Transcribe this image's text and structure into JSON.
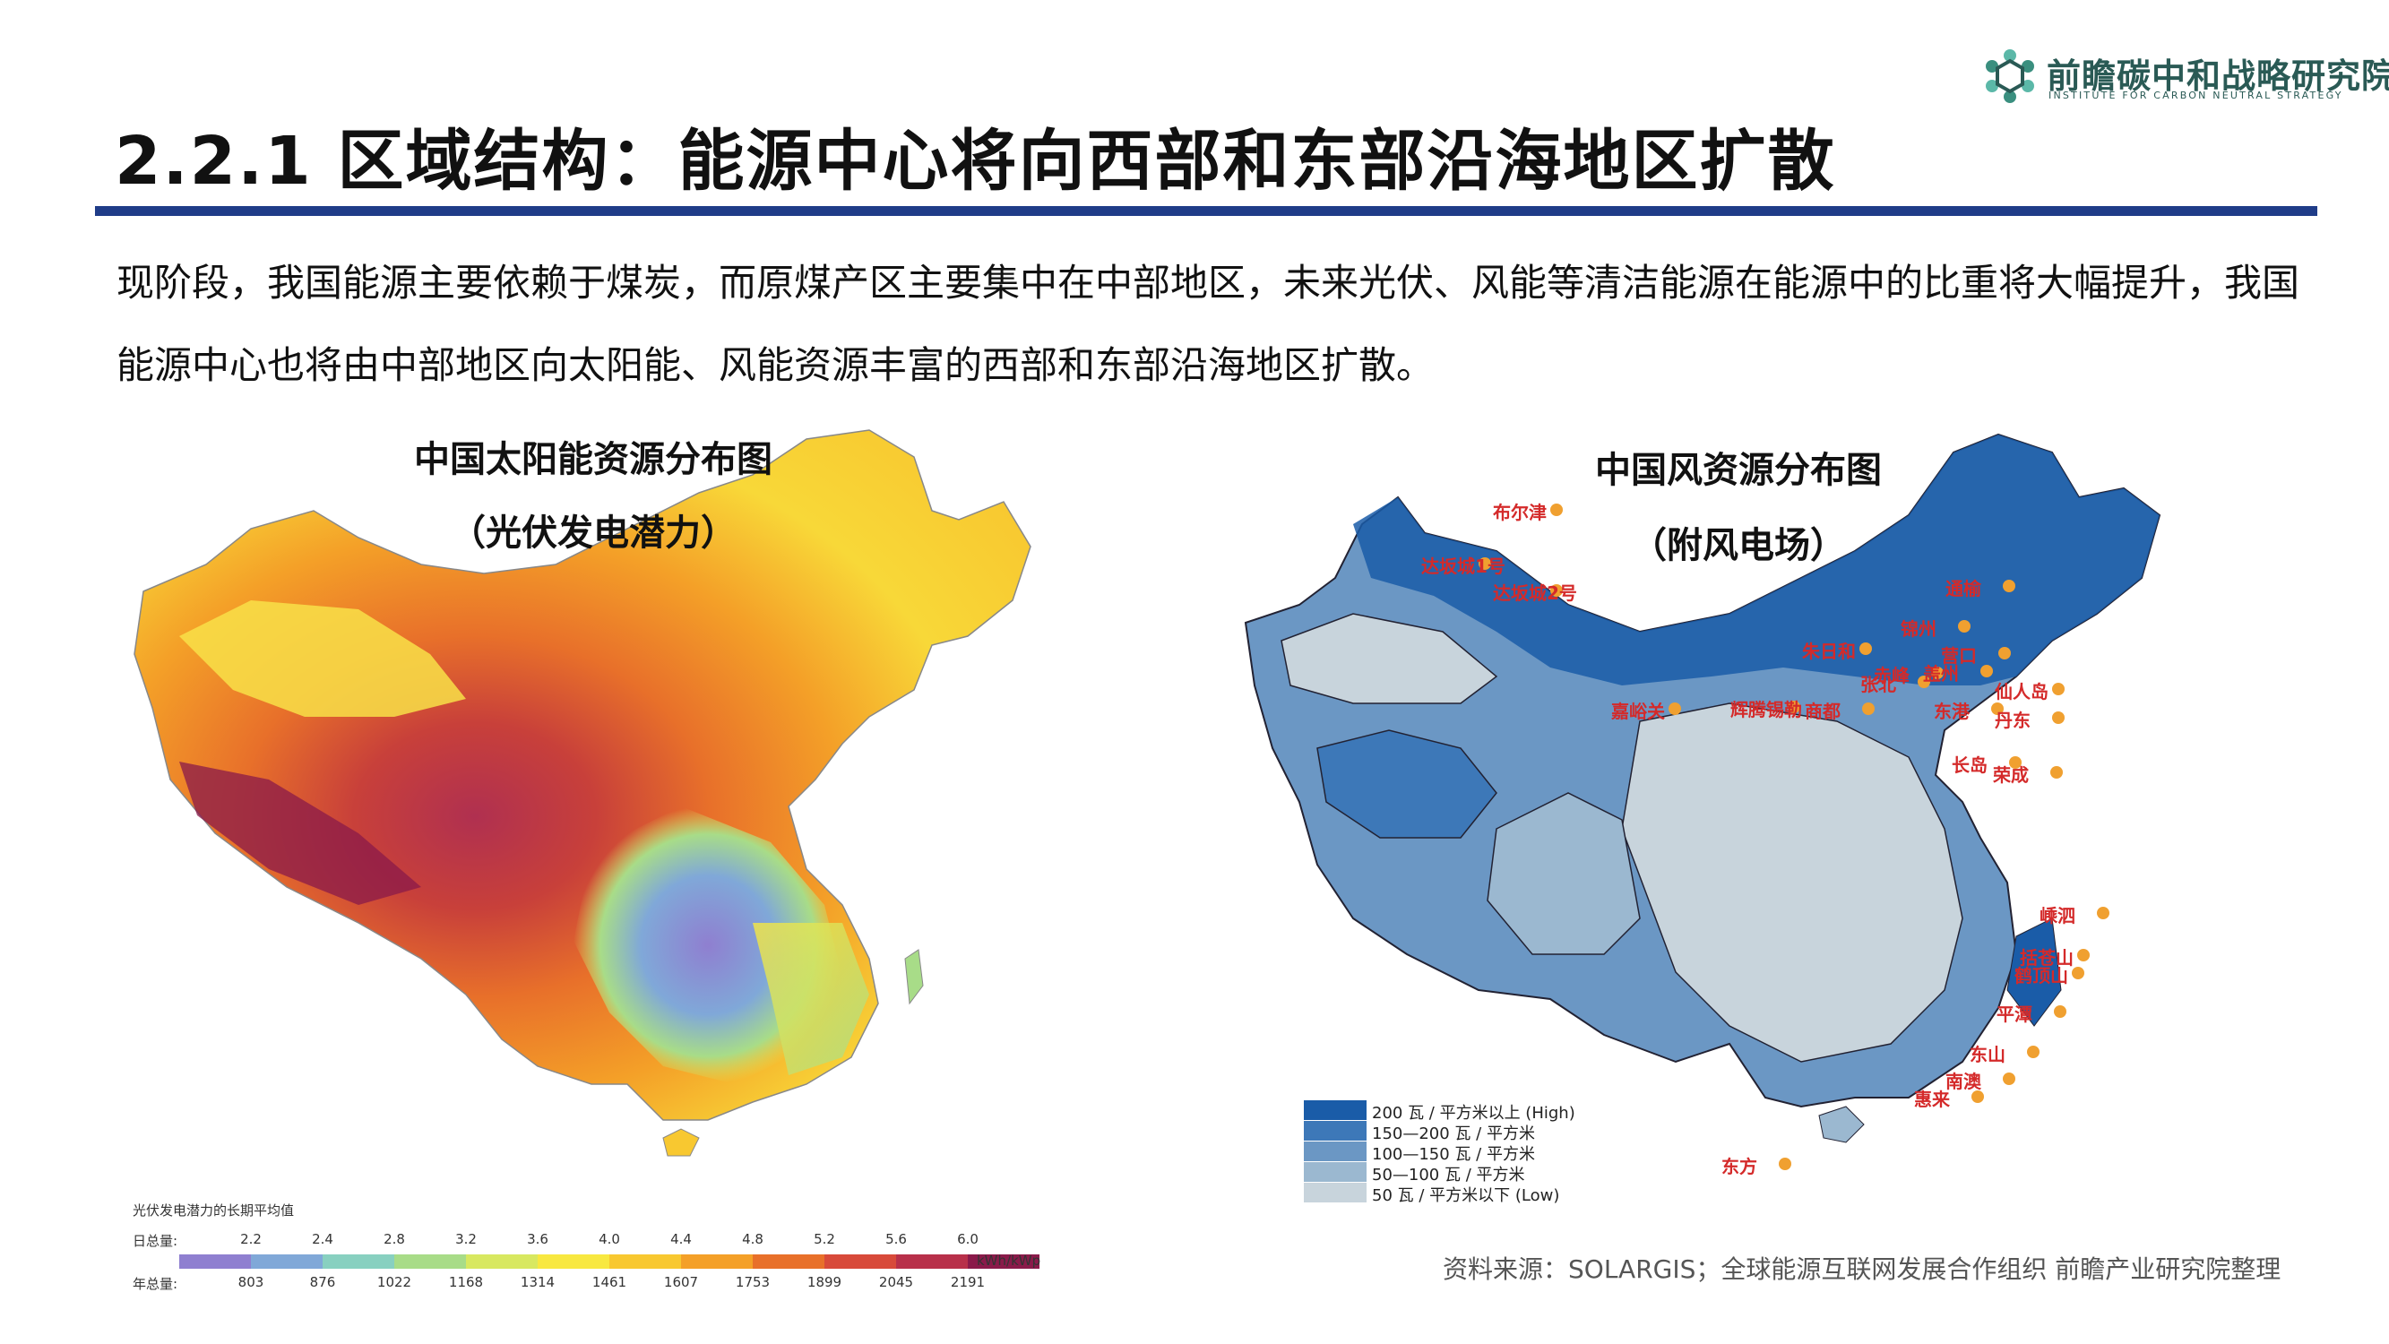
{
  "logo": {
    "name_cn": "前瞻碳中和战略研究院",
    "name_en": "INSTITUTE FOR CARBON NEUTRAL STRATEGY",
    "colors": [
      "#5bb8a8",
      "#3a8f7f",
      "#2a5a55"
    ]
  },
  "title": "2.2.1 区域结构：能源中心将向西部和东部沿海地区扩散",
  "paragraph": "现阶段，我国能源主要依赖于煤炭，而原煤产区主要集中在中部地区，未来光伏、风能等清洁能源在能源中的比重将大幅提升，我国能源中心也将由中部地区向太阳能、风能资源丰富的西部和东部沿海地区扩散。",
  "solar_map": {
    "title": "中国太阳能资源分布图",
    "subtitle": "（光伏发电潜力）",
    "legend": {
      "title": "光伏发电潜力的长期平均值",
      "daily_label": "日总量:",
      "yearly_label": "年总量:",
      "daily_ticks": [
        "2.2",
        "2.4",
        "2.8",
        "3.2",
        "3.6",
        "4.0",
        "4.4",
        "4.8",
        "5.2",
        "5.6",
        "6.0"
      ],
      "yearly_ticks": [
        "803",
        "876",
        "1022",
        "1168",
        "1314",
        "1461",
        "1607",
        "1753",
        "1899",
        "2045",
        "2191"
      ],
      "unit": "kWh/kWp",
      "colors": [
        "#8f7fd0",
        "#80a8d8",
        "#88d0c0",
        "#a8dc88",
        "#d8e860",
        "#f8e840",
        "#f8c830",
        "#f4a028",
        "#e8702a",
        "#d84a3a",
        "#b8304a",
        "#8a1a4a"
      ]
    }
  },
  "wind_map": {
    "title": "中国风资源分布图",
    "subtitle": "（附风电场）",
    "legend": [
      {
        "label": "200 瓦 / 平方米以上 (High)",
        "color": "#1a5ca8"
      },
      {
        "label": "150—200 瓦 / 平方米",
        "color": "#3d78b8"
      },
      {
        "label": "100—150 瓦 / 平方米",
        "color": "#6b97c4"
      },
      {
        "label": "50—100 瓦 / 平方米",
        "color": "#9bb8d0"
      },
      {
        "label": "50 瓦 / 平方米以下 (Low)",
        "color": "#c8d4dc"
      }
    ],
    "wind_farms": [
      "布尔津",
      "达坂城1号",
      "达坂城2号",
      "嘉峪关",
      "朱日和",
      "辉腾锡勒",
      "商都",
      "张北",
      "赤峰",
      "通榆",
      "锦州",
      "营口",
      "盖州",
      "仙人岛",
      "东港",
      "丹东",
      "长岛",
      "荣成",
      "嵊泗",
      "括苍山",
      "鹤顶山",
      "平潭",
      "东山",
      "南澳",
      "惠来",
      "东方"
    ],
    "contour_labels": [
      "50",
      "100",
      "150",
      "200"
    ]
  },
  "source": "资料来源：SOLARGIS；全球能源互联网发展合作组织 前瞻产业研究院整理"
}
